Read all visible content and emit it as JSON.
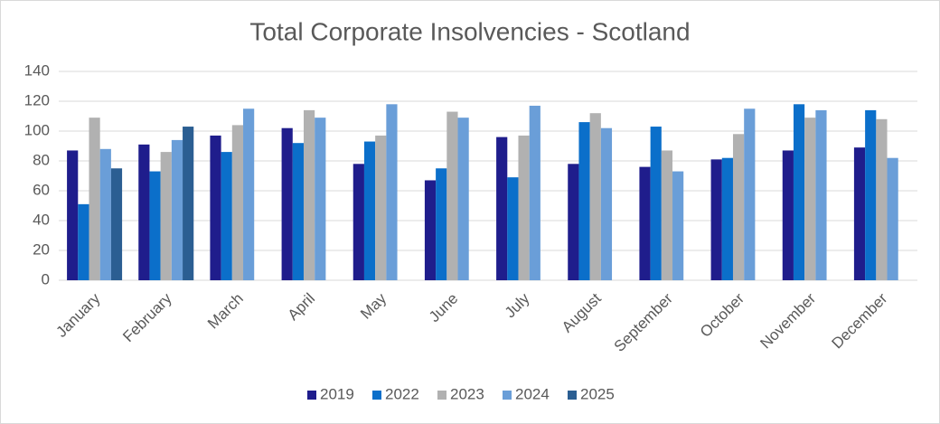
{
  "chart_data": {
    "type": "bar",
    "title": "Total Corporate Insolvencies - Scotland",
    "categories": [
      "January",
      "February",
      "March",
      "April",
      "May",
      "June",
      "July",
      "August",
      "September",
      "October",
      "November",
      "December"
    ],
    "series": [
      {
        "name": "2019",
        "color": "#1f1d8c",
        "values": [
          87,
          91,
          97,
          102,
          78,
          67,
          96,
          78,
          76,
          81,
          87,
          89
        ]
      },
      {
        "name": "2022",
        "color": "#0b6fca",
        "values": [
          51,
          73,
          86,
          92,
          93,
          75,
          69,
          106,
          103,
          82,
          118,
          114
        ]
      },
      {
        "name": "2023",
        "color": "#b1b1b1",
        "values": [
          109,
          86,
          104,
          114,
          97,
          113,
          97,
          112,
          87,
          98,
          109,
          108
        ]
      },
      {
        "name": "2024",
        "color": "#6a9ed8",
        "values": [
          88,
          94,
          115,
          109,
          118,
          109,
          117,
          102,
          73,
          115,
          114,
          82
        ]
      },
      {
        "name": "2025",
        "color": "#2b5e92",
        "values": [
          75,
          103,
          null,
          null,
          null,
          null,
          null,
          null,
          null,
          null,
          null,
          null
        ]
      }
    ],
    "ylim": [
      0,
      140
    ],
    "yticks": [
      0,
      20,
      40,
      60,
      80,
      100,
      120,
      140
    ],
    "grid": true,
    "legend": "bottom"
  }
}
